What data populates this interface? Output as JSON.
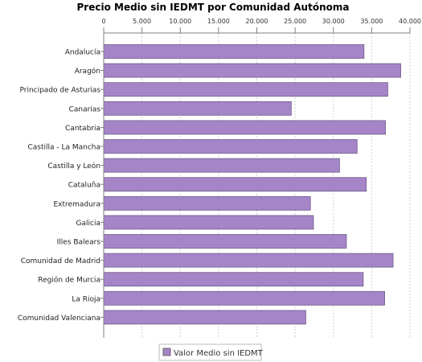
{
  "chart_data": {
    "type": "bar",
    "orientation": "horizontal",
    "title": "Precio Medio sin IEDMT por Comunidad Autónoma",
    "xlabel": "",
    "ylabel": "",
    "xlim": [
      0,
      40000
    ],
    "ticks": [
      0,
      5000,
      10000,
      15000,
      20000,
      25000,
      30000,
      35000,
      40000
    ],
    "tick_labels": [
      "0",
      "5.000",
      "10.000",
      "15.000",
      "20.000",
      "25.000",
      "30.000",
      "35.000",
      "40.000"
    ],
    "axis_position": "top",
    "grid": true,
    "legend_position": "bottom",
    "categories": [
      "Andalucía",
      "Aragón",
      "Principado de Asturias",
      "Canarias",
      "Cantabria",
      "Castilla - La Mancha",
      "Castilla y León",
      "Cataluña",
      "Extremadura",
      "Galicia",
      "Illes Balears",
      "Comunidad de Madrid",
      "Región de Murcia",
      "La Rioja",
      "Comunidad Valenciana"
    ],
    "series": [
      {
        "name": "Valor Medio sin IEDMT",
        "color": "#a585c8",
        "values": [
          34000,
          38800,
          37100,
          24500,
          36800,
          33100,
          30800,
          34300,
          27000,
          27400,
          31700,
          37800,
          33900,
          36700,
          26400
        ]
      }
    ]
  }
}
